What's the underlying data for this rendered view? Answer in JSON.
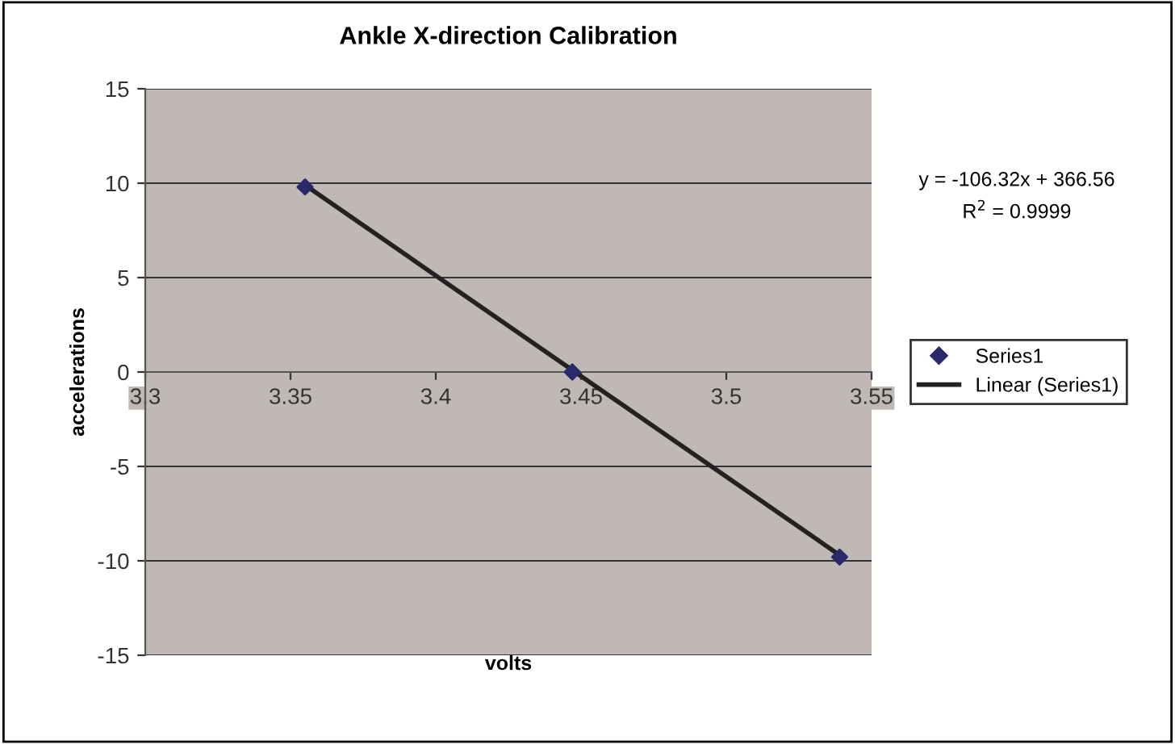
{
  "chart_data": {
    "type": "scatter",
    "title": "Ankle X-direction Calibration",
    "xlabel": "volts",
    "ylabel": "accelerations",
    "xlim": [
      3.3,
      3.55
    ],
    "xticks": [
      3.3,
      3.35,
      3.4,
      3.45,
      3.5,
      3.55
    ],
    "ylim": [
      -15,
      15
    ],
    "yticks": [
      -15,
      -10,
      -5,
      0,
      5,
      10,
      15
    ],
    "grid": "y",
    "legend": "right",
    "marker": "diamond",
    "series": [
      {
        "name": "Series1",
        "color": "#2a2a6a",
        "x": [
          3.355,
          3.447,
          3.539
        ],
        "values": [
          9.8,
          0,
          -9.8
        ]
      },
      {
        "name": "Linear (Series1)",
        "type": "line",
        "color": "#222222",
        "marker": "none",
        "line_style": "solid",
        "x": [
          3.355,
          3.539
        ],
        "values": [
          9.9,
          -9.7
        ]
      }
    ],
    "annotations": [
      "y = -106.32x + 366.56",
      "R$^{2}$ = 0.9999"
    ]
  }
}
